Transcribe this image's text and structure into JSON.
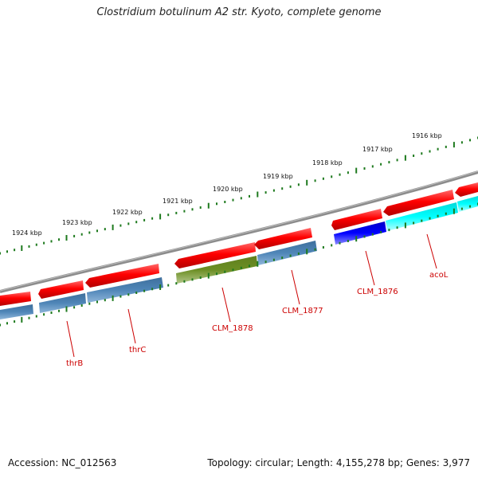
{
  "title": "Clostridium botulinum A2 str. Kyoto, complete genome",
  "footer": {
    "accession": "Accession: NC_012563",
    "summary": "Topology: circular; Length: 4,155,278 bp; Genes: 3,977"
  },
  "colors": {
    "backbone": "#808080",
    "tick": "#1e7a1e",
    "gene_forward": "#ff0000",
    "gene_reverse_default": "#4682b4",
    "gene_olive": "#6b8e23",
    "gene_blue": "#0000ee",
    "gene_cyan": "#00ffff",
    "label": "#cc0000"
  },
  "kbp_ticks": [
    {
      "kbp": 1924,
      "label": "1924 kbp"
    },
    {
      "kbp": 1923,
      "label": "1923 kbp"
    },
    {
      "kbp": 1922,
      "label": "1922 kbp"
    },
    {
      "kbp": 1921,
      "label": "1921 kbp"
    },
    {
      "kbp": 1920,
      "label": "1920 kbp"
    },
    {
      "kbp": 1919,
      "label": "1919 kbp"
    },
    {
      "kbp": 1918,
      "label": "1918 kbp"
    },
    {
      "kbp": 1917,
      "label": "1917 kbp"
    },
    {
      "kbp": 1916,
      "label": "1916 kbp"
    }
  ],
  "gene_labels": [
    {
      "name": "thrB",
      "gene": "thrB"
    },
    {
      "name": "thrC",
      "gene": "thrC"
    },
    {
      "name": "CLM_1878",
      "gene": "CLM_1878"
    },
    {
      "name": "CLM_1877",
      "gene": "CLM_1877"
    },
    {
      "name": "CLM_1876",
      "gene": "CLM_1876"
    },
    {
      "name": "acoL",
      "gene": "acoL"
    }
  ]
}
